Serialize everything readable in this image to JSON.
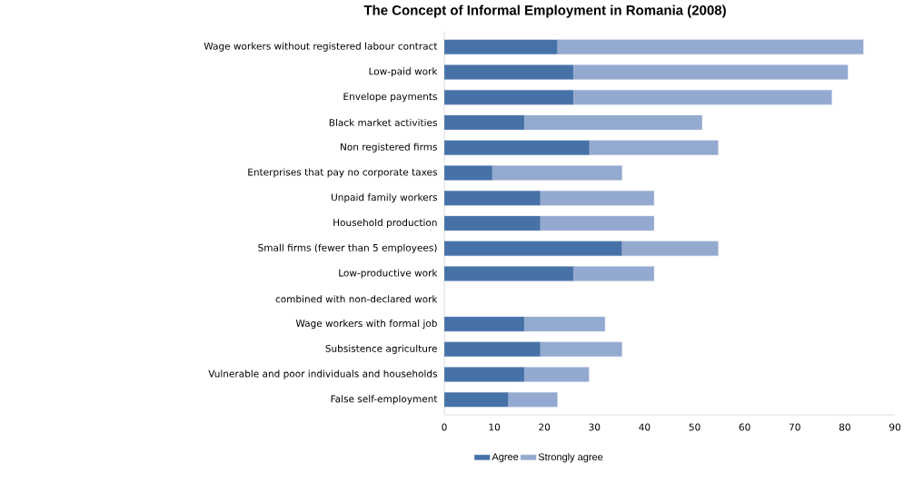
{
  "chart_data": {
    "type": "bar",
    "orientation": "horizontal",
    "stacked": true,
    "title": "The Concept of Informal Employment in Romania (2008)",
    "categories": [
      "Wage workers without registered labour contract",
      "Low-paid work",
      "Envelope payments",
      "Black market activities",
      "Non registered firms",
      "Enterprises that pay no corporate taxes",
      "Unpaid family workers",
      "Household production",
      "Small firms (fewer than 5 employees)",
      "Low-productive work",
      "combined with non-declared work",
      "Wage workers with formal job",
      "Subsistence agriculture",
      "Vulnerable and poor individuals and households",
      "False self-employment"
    ],
    "series": [
      {
        "name": "Agree",
        "color": "#4672a8",
        "values": [
          22.6,
          25.8,
          25.8,
          16.0,
          29.0,
          9.6,
          19.2,
          19.2,
          35.5,
          25.8,
          null,
          16.0,
          19.2,
          16.0,
          12.8
        ]
      },
      {
        "name": "Strongly agree",
        "color": "#94a9d0",
        "values": [
          61.1,
          54.8,
          51.6,
          35.5,
          25.7,
          25.9,
          22.7,
          22.7,
          19.2,
          16.1,
          null,
          16.1,
          16.3,
          12.9,
          9.8
        ]
      }
    ],
    "xlim": [
      0,
      90
    ],
    "xticks": [
      0,
      10,
      20,
      30,
      40,
      50,
      60,
      70,
      80,
      90
    ],
    "grid": false,
    "legend": "bottom"
  }
}
